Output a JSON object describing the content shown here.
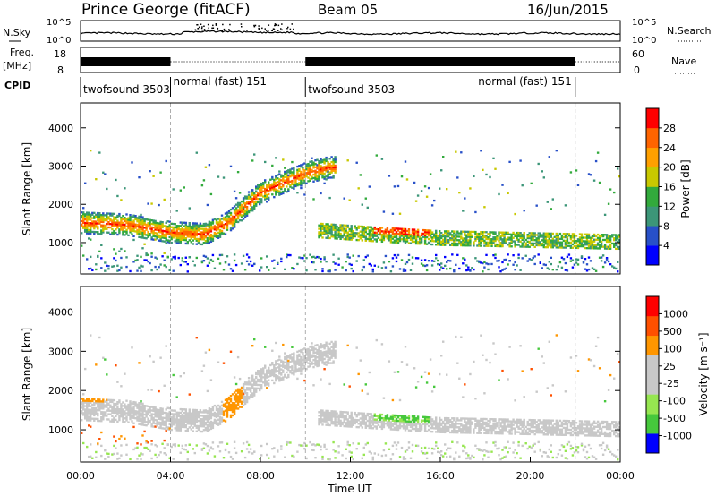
{
  "header": {
    "station": "Prince George (fitACF)",
    "beam": "Beam 05",
    "date": "16/Jun/2015"
  },
  "summary": {
    "nsky_label": "N.Sky",
    "nsky_ticks": [
      "10^5",
      "10^0"
    ],
    "nsearch_label": "N.Search",
    "nsearch_ticks": [
      "10^5",
      "10^0"
    ],
    "freq_label": "Freq.",
    "freq_unit": "[MHz]",
    "freq_ticks": [
      "18",
      "8"
    ],
    "nave_label": "Nave",
    "nave_ticks": [
      "60",
      "0"
    ],
    "cpid_label": "CPID",
    "cpid_segments": [
      {
        "label": "twofsound 3503",
        "start_h": 0,
        "end_h": 4
      },
      {
        "label": "normal (fast) 151",
        "start_h": 4,
        "end_h": 10
      },
      {
        "label": "twofsound 3503",
        "start_h": 10,
        "end_h": 22
      },
      {
        "label": "normal (fast) 151",
        "start_h": 22,
        "end_h": 24
      }
    ]
  },
  "colors": {
    "power_scale": [
      "#0000ff",
      "#2850c8",
      "#3c9678",
      "#32aa3c",
      "#c8c800",
      "#ffa000",
      "#ff6400",
      "#ff0000"
    ],
    "velocity_scale": [
      "#ff0000",
      "#ff5000",
      "#ff9600",
      "#c8c8c8",
      "#c8c8c8",
      "#96e650",
      "#46c83c",
      "#0000ff"
    ],
    "ground_scatter": "#c8c8c8"
  },
  "chart_data": [
    {
      "type": "heatmap",
      "panel": "power",
      "xlabel": "",
      "ylabel": "Slant Range [km]",
      "xlim": [
        0,
        24
      ],
      "ylim": [
        180,
        4650
      ],
      "yticks": [
        "1000",
        "2000",
        "3000",
        "4000"
      ],
      "colorbar": {
        "label": "Power [dB]",
        "range": [
          0,
          32
        ],
        "ticks": [
          "4",
          "8",
          "12",
          "16",
          "20",
          "24",
          "28"
        ]
      },
      "features": [
        {
          "name": "main echo band",
          "time_h": [
            0.0,
            2.0,
            4.0,
            5.5,
            6.5,
            8.0,
            9.0,
            10.0,
            11.0
          ],
          "range_km": [
            1500,
            1450,
            1250,
            1200,
            1500,
            2300,
            2550,
            2800,
            2950
          ],
          "power_db": 28
        },
        {
          "name": "lower band",
          "time_h": [
            10.5,
            13.0,
            16.0,
            20.0,
            23.8
          ],
          "range_km": [
            1300,
            1200,
            1100,
            1050,
            1000
          ],
          "power_db": 14
        }
      ]
    },
    {
      "type": "heatmap",
      "panel": "velocity",
      "xlabel": "Time UT",
      "ylabel": "Slant Range [km]",
      "xlim": [
        0,
        24
      ],
      "ylim": [
        180,
        4650
      ],
      "xticks": [
        "00:00",
        "04:00",
        "08:00",
        "12:00",
        "16:00",
        "20:00",
        "00:00"
      ],
      "yticks": [
        "1000",
        "2000",
        "3000",
        "4000"
      ],
      "colorbar": {
        "label": "Velocity [m s⁻¹]",
        "ticks": [
          "1000",
          "500",
          "100",
          "25",
          "-25",
          "-100",
          "-500",
          "-1000"
        ]
      }
    }
  ]
}
